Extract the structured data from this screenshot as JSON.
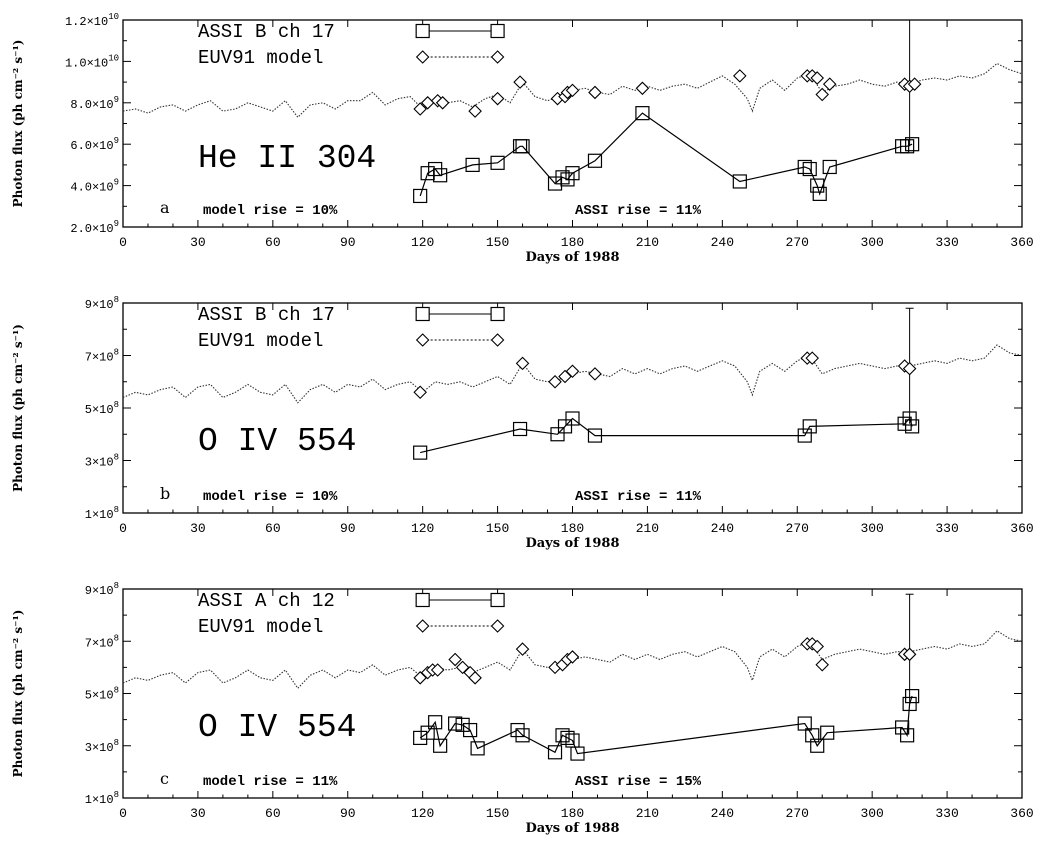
{
  "chart_data": [
    {
      "type": "line",
      "panel_letter": "a",
      "line_label": "He II 304",
      "ylabel": "Photon flux (ph cm⁻² s⁻¹)",
      "xlabel": "Days of 1988",
      "xlim": [
        0,
        360
      ],
      "ylim": [
        2000000000.0,
        12000000000.0
      ],
      "x_ticks": [
        0,
        30,
        60,
        90,
        120,
        150,
        180,
        210,
        240,
        270,
        300,
        330,
        360
      ],
      "y_ticks": [
        2000000000.0,
        4000000000.0,
        6000000000.0,
        8000000000.0,
        10000000000.0,
        12000000000.0
      ],
      "y_tick_labels": [
        {
          "mantissa": "2.0×10",
          "exp": "9"
        },
        {
          "mantissa": "4.0×10",
          "exp": "9"
        },
        {
          "mantissa": "6.0×10",
          "exp": "9"
        },
        {
          "mantissa": "8.0×10",
          "exp": "9"
        },
        {
          "mantissa": "1.0×10",
          "exp": "10"
        },
        {
          "mantissa": "1.2×10",
          "exp": "10"
        }
      ],
      "legend": [
        "ASSI B ch 17",
        "EUV91 model"
      ],
      "model_rise": "model rise = 10%",
      "assi_rise": "ASSI rise = 11%",
      "model_curve": {
        "x": [
          0,
          5,
          10,
          15,
          20,
          25,
          30,
          35,
          40,
          45,
          50,
          55,
          60,
          65,
          70,
          75,
          80,
          85,
          90,
          95,
          100,
          105,
          110,
          115,
          120,
          125,
          130,
          135,
          140,
          145,
          150,
          155,
          160,
          165,
          170,
          175,
          180,
          185,
          190,
          195,
          200,
          205,
          210,
          215,
          220,
          225,
          230,
          235,
          240,
          245,
          250,
          252,
          255,
          260,
          265,
          270,
          275,
          280,
          285,
          290,
          295,
          300,
          305,
          310,
          315,
          320,
          325,
          330,
          335,
          340,
          345,
          350,
          355,
          360
        ],
        "y": [
          7600000000.0,
          7700000000.0,
          7500000000.0,
          7800000000.0,
          7900000000.0,
          7600000000.0,
          7900000000.0,
          8100000000.0,
          7600000000.0,
          7700000000.0,
          8000000000.0,
          7800000000.0,
          7600000000.0,
          8100000000.0,
          7300000000.0,
          7900000000.0,
          8000000000.0,
          7700000000.0,
          8100000000.0,
          8100000000.0,
          8500000000.0,
          7900000000.0,
          8200000000.0,
          8300000000.0,
          7700000000.0,
          8200000000.0,
          8000000000.0,
          8100000000.0,
          7800000000.0,
          8200000000.0,
          8400000000.0,
          8000000000.0,
          9000000000.0,
          8300000000.0,
          8100000000.0,
          8300000000.0,
          8600000000.0,
          8700000000.0,
          8500000000.0,
          8400000000.0,
          8800000000.0,
          8600000000.0,
          8800000000.0,
          8600000000.0,
          8800000000.0,
          8900000000.0,
          8700000000.0,
          9000000000.0,
          9300000000.0,
          8900000000.0,
          8200000000.0,
          7600000000.0,
          8700000000.0,
          9100000000.0,
          8600000000.0,
          9200000000.0,
          9400000000.0,
          8500000000.0,
          8800000000.0,
          8900000000.0,
          9100000000.0,
          8900000000.0,
          8800000000.0,
          9000000000.0,
          8900000000.0,
          9100000000.0,
          9200000000.0,
          9100000000.0,
          9300000000.0,
          9200000000.0,
          9400000000.0,
          9900000000.0,
          9600000000.0,
          9400000000.0
        ]
      },
      "model_points": {
        "x": [
          119,
          122,
          126,
          128,
          141,
          150,
          159,
          174,
          177,
          178,
          180,
          189,
          208,
          247,
          274,
          276,
          278,
          280,
          283,
          313,
          315,
          317
        ],
        "y": [
          7700000000.0,
          8000000000.0,
          8100000000.0,
          8000000000.0,
          7600000000.0,
          8200000000.0,
          9000000000.0,
          8200000000.0,
          8300000000.0,
          8500000000.0,
          8600000000.0,
          8500000000.0,
          8700000000.0,
          9300000000.0,
          9300000000.0,
          9300000000.0,
          9200000000.0,
          8400000000.0,
          8900000000.0,
          8900000000.0,
          8800000000.0,
          8900000000.0
        ]
      },
      "assi_points": {
        "x": [
          119,
          122,
          125,
          127,
          140,
          150,
          159,
          160,
          173,
          176,
          178,
          180,
          189,
          208,
          247,
          273,
          275,
          278,
          279,
          283,
          312,
          314,
          316
        ],
        "y": [
          3500000000.0,
          4600000000.0,
          4800000000.0,
          4500000000.0,
          5000000000.0,
          5100000000.0,
          5900000000.0,
          5900000000.0,
          4100000000.0,
          4400000000.0,
          4300000000.0,
          4600000000.0,
          5200000000.0,
          7500000000.0,
          4200000000.0,
          4900000000.0,
          4800000000.0,
          4000000000.0,
          3600000000.0,
          4900000000.0,
          5900000000.0,
          5900000000.0,
          6000000000.0
        ]
      },
      "error_bar": {
        "x": 315,
        "low": 5900000000.0,
        "high": 12000000000.0
      }
    },
    {
      "type": "line",
      "panel_letter": "b",
      "line_label": "O IV 554",
      "ylabel": "Photon flux (ph cm⁻² s⁻¹)",
      "xlabel": "Days of 1988",
      "xlim": [
        0,
        360
      ],
      "ylim": [
        100000000.0,
        900000000.0
      ],
      "x_ticks": [
        0,
        30,
        60,
        90,
        120,
        150,
        180,
        210,
        240,
        270,
        300,
        330,
        360
      ],
      "y_ticks": [
        100000000.0,
        300000000.0,
        500000000.0,
        700000000.0,
        900000000.0
      ],
      "y_tick_labels": [
        {
          "mantissa": "1×10",
          "exp": "8"
        },
        {
          "mantissa": "3×10",
          "exp": "8"
        },
        {
          "mantissa": "5×10",
          "exp": "8"
        },
        {
          "mantissa": "7×10",
          "exp": "8"
        },
        {
          "mantissa": "9×10",
          "exp": "8"
        }
      ],
      "legend": [
        "ASSI B ch 17",
        "EUV91 model"
      ],
      "model_rise": "model rise = 10%",
      "assi_rise": "ASSI rise = 11%",
      "model_curve": {
        "x": [
          0,
          5,
          10,
          15,
          20,
          25,
          30,
          35,
          40,
          45,
          50,
          55,
          60,
          65,
          70,
          75,
          80,
          85,
          90,
          95,
          100,
          105,
          110,
          115,
          120,
          125,
          130,
          135,
          140,
          145,
          150,
          155,
          160,
          165,
          170,
          175,
          180,
          185,
          190,
          195,
          200,
          205,
          210,
          215,
          220,
          225,
          230,
          235,
          240,
          245,
          250,
          252,
          255,
          260,
          265,
          270,
          275,
          280,
          285,
          290,
          295,
          300,
          305,
          310,
          315,
          320,
          325,
          330,
          335,
          340,
          345,
          350,
          355,
          360
        ],
        "y": [
          540000000.0,
          560000000.0,
          550000000.0,
          570000000.0,
          580000000.0,
          540000000.0,
          580000000.0,
          590000000.0,
          540000000.0,
          560000000.0,
          590000000.0,
          560000000.0,
          550000000.0,
          590000000.0,
          520000000.0,
          570000000.0,
          590000000.0,
          560000000.0,
          590000000.0,
          580000000.0,
          610000000.0,
          570000000.0,
          590000000.0,
          600000000.0,
          560000000.0,
          600000000.0,
          590000000.0,
          600000000.0,
          580000000.0,
          600000000.0,
          620000000.0,
          590000000.0,
          670000000.0,
          610000000.0,
          600000000.0,
          610000000.0,
          630000000.0,
          640000000.0,
          630000000.0,
          620000000.0,
          650000000.0,
          630000000.0,
          650000000.0,
          630000000.0,
          650000000.0,
          660000000.0,
          640000000.0,
          660000000.0,
          680000000.0,
          660000000.0,
          600000000.0,
          550000000.0,
          640000000.0,
          670000000.0,
          640000000.0,
          680000000.0,
          700000000.0,
          630000000.0,
          650000000.0,
          660000000.0,
          670000000.0,
          660000000.0,
          650000000.0,
          660000000.0,
          660000000.0,
          670000000.0,
          680000000.0,
          670000000.0,
          690000000.0,
          680000000.0,
          690000000.0,
          740000000.0,
          710000000.0,
          700000000.0
        ]
      },
      "model_points": {
        "x": [
          119,
          160,
          173,
          177,
          180,
          189,
          274,
          276,
          313,
          315
        ],
        "y": [
          560000000.0,
          670000000.0,
          600000000.0,
          620000000.0,
          640000000.0,
          630000000.0,
          690000000.0,
          690000000.0,
          660000000.0,
          650000000.0
        ]
      },
      "assi_points": {
        "x": [
          119,
          159,
          174,
          177,
          180,
          189,
          273,
          275,
          313,
          315,
          316
        ],
        "y": [
          330000000.0,
          420000000.0,
          400000000.0,
          430000000.0,
          460000000.0,
          395000000.0,
          395000000.0,
          430000000.0,
          440000000.0,
          460000000.0,
          430000000.0
        ]
      },
      "error_bar": {
        "x": 315,
        "low": 440000000.0,
        "high": 880000000.0
      }
    },
    {
      "type": "line",
      "panel_letter": "c",
      "line_label": "O IV 554",
      "ylabel": "Photon flux (ph cm⁻² s⁻¹)",
      "xlabel": "Days of 1988",
      "xlim": [
        0,
        360
      ],
      "ylim": [
        100000000.0,
        900000000.0
      ],
      "x_ticks": [
        0,
        30,
        60,
        90,
        120,
        150,
        180,
        210,
        240,
        270,
        300,
        330,
        360
      ],
      "y_ticks": [
        100000000.0,
        300000000.0,
        500000000.0,
        700000000.0,
        900000000.0
      ],
      "y_tick_labels": [
        {
          "mantissa": "1×10",
          "exp": "8"
        },
        {
          "mantissa": "3×10",
          "exp": "8"
        },
        {
          "mantissa": "5×10",
          "exp": "8"
        },
        {
          "mantissa": "7×10",
          "exp": "8"
        },
        {
          "mantissa": "9×10",
          "exp": "8"
        }
      ],
      "legend": [
        "ASSI A ch 12",
        "EUV91 model"
      ],
      "model_rise": "model rise = 11%",
      "assi_rise": "ASSI rise = 15%",
      "model_curve": {
        "x": [
          0,
          5,
          10,
          15,
          20,
          25,
          30,
          35,
          40,
          45,
          50,
          55,
          60,
          65,
          70,
          75,
          80,
          85,
          90,
          95,
          100,
          105,
          110,
          115,
          120,
          125,
          130,
          135,
          140,
          145,
          150,
          155,
          160,
          165,
          170,
          175,
          180,
          185,
          190,
          195,
          200,
          205,
          210,
          215,
          220,
          225,
          230,
          235,
          240,
          245,
          250,
          252,
          255,
          260,
          265,
          270,
          275,
          280,
          285,
          290,
          295,
          300,
          305,
          310,
          315,
          320,
          325,
          330,
          335,
          340,
          345,
          350,
          355,
          360
        ],
        "y": [
          540000000.0,
          560000000.0,
          550000000.0,
          570000000.0,
          580000000.0,
          540000000.0,
          580000000.0,
          590000000.0,
          540000000.0,
          560000000.0,
          590000000.0,
          560000000.0,
          550000000.0,
          590000000.0,
          520000000.0,
          570000000.0,
          590000000.0,
          560000000.0,
          590000000.0,
          580000000.0,
          610000000.0,
          570000000.0,
          590000000.0,
          600000000.0,
          560000000.0,
          600000000.0,
          590000000.0,
          600000000.0,
          580000000.0,
          600000000.0,
          620000000.0,
          590000000.0,
          670000000.0,
          610000000.0,
          600000000.0,
          610000000.0,
          630000000.0,
          640000000.0,
          630000000.0,
          620000000.0,
          650000000.0,
          630000000.0,
          650000000.0,
          630000000.0,
          650000000.0,
          660000000.0,
          640000000.0,
          660000000.0,
          680000000.0,
          660000000.0,
          600000000.0,
          550000000.0,
          640000000.0,
          670000000.0,
          640000000.0,
          680000000.0,
          700000000.0,
          630000000.0,
          650000000.0,
          660000000.0,
          670000000.0,
          660000000.0,
          650000000.0,
          660000000.0,
          660000000.0,
          670000000.0,
          680000000.0,
          670000000.0,
          690000000.0,
          680000000.0,
          690000000.0,
          740000000.0,
          710000000.0,
          700000000.0
        ]
      },
      "model_points": {
        "x": [
          119,
          122,
          124,
          126,
          133,
          136,
          139,
          141,
          160,
          173,
          176,
          178,
          180,
          274,
          276,
          278,
          280,
          313,
          315
        ],
        "y": [
          560000000.0,
          580000000.0,
          590000000.0,
          590000000.0,
          630000000.0,
          600000000.0,
          580000000.0,
          560000000.0,
          670000000.0,
          600000000.0,
          610000000.0,
          630000000.0,
          640000000.0,
          690000000.0,
          690000000.0,
          680000000.0,
          610000000.0,
          650000000.0,
          650000000.0
        ]
      },
      "assi_points": {
        "x": [
          119,
          122,
          125,
          127,
          133,
          136,
          139,
          142,
          158,
          160,
          173,
          176,
          178,
          180,
          182,
          273,
          276,
          278,
          282,
          312,
          314,
          315,
          316
        ],
        "y": [
          330000000.0,
          350000000.0,
          390000000.0,
          300000000.0,
          385000000.0,
          380000000.0,
          360000000.0,
          290000000.0,
          360000000.0,
          340000000.0,
          275000000.0,
          340000000.0,
          330000000.0,
          320000000.0,
          270000000.0,
          385000000.0,
          340000000.0,
          300000000.0,
          350000000.0,
          370000000.0,
          340000000.0,
          460000000.0,
          490000000.0
        ]
      },
      "error_bar": {
        "x": 315,
        "low": 460000000.0,
        "high": 880000000.0
      }
    }
  ]
}
